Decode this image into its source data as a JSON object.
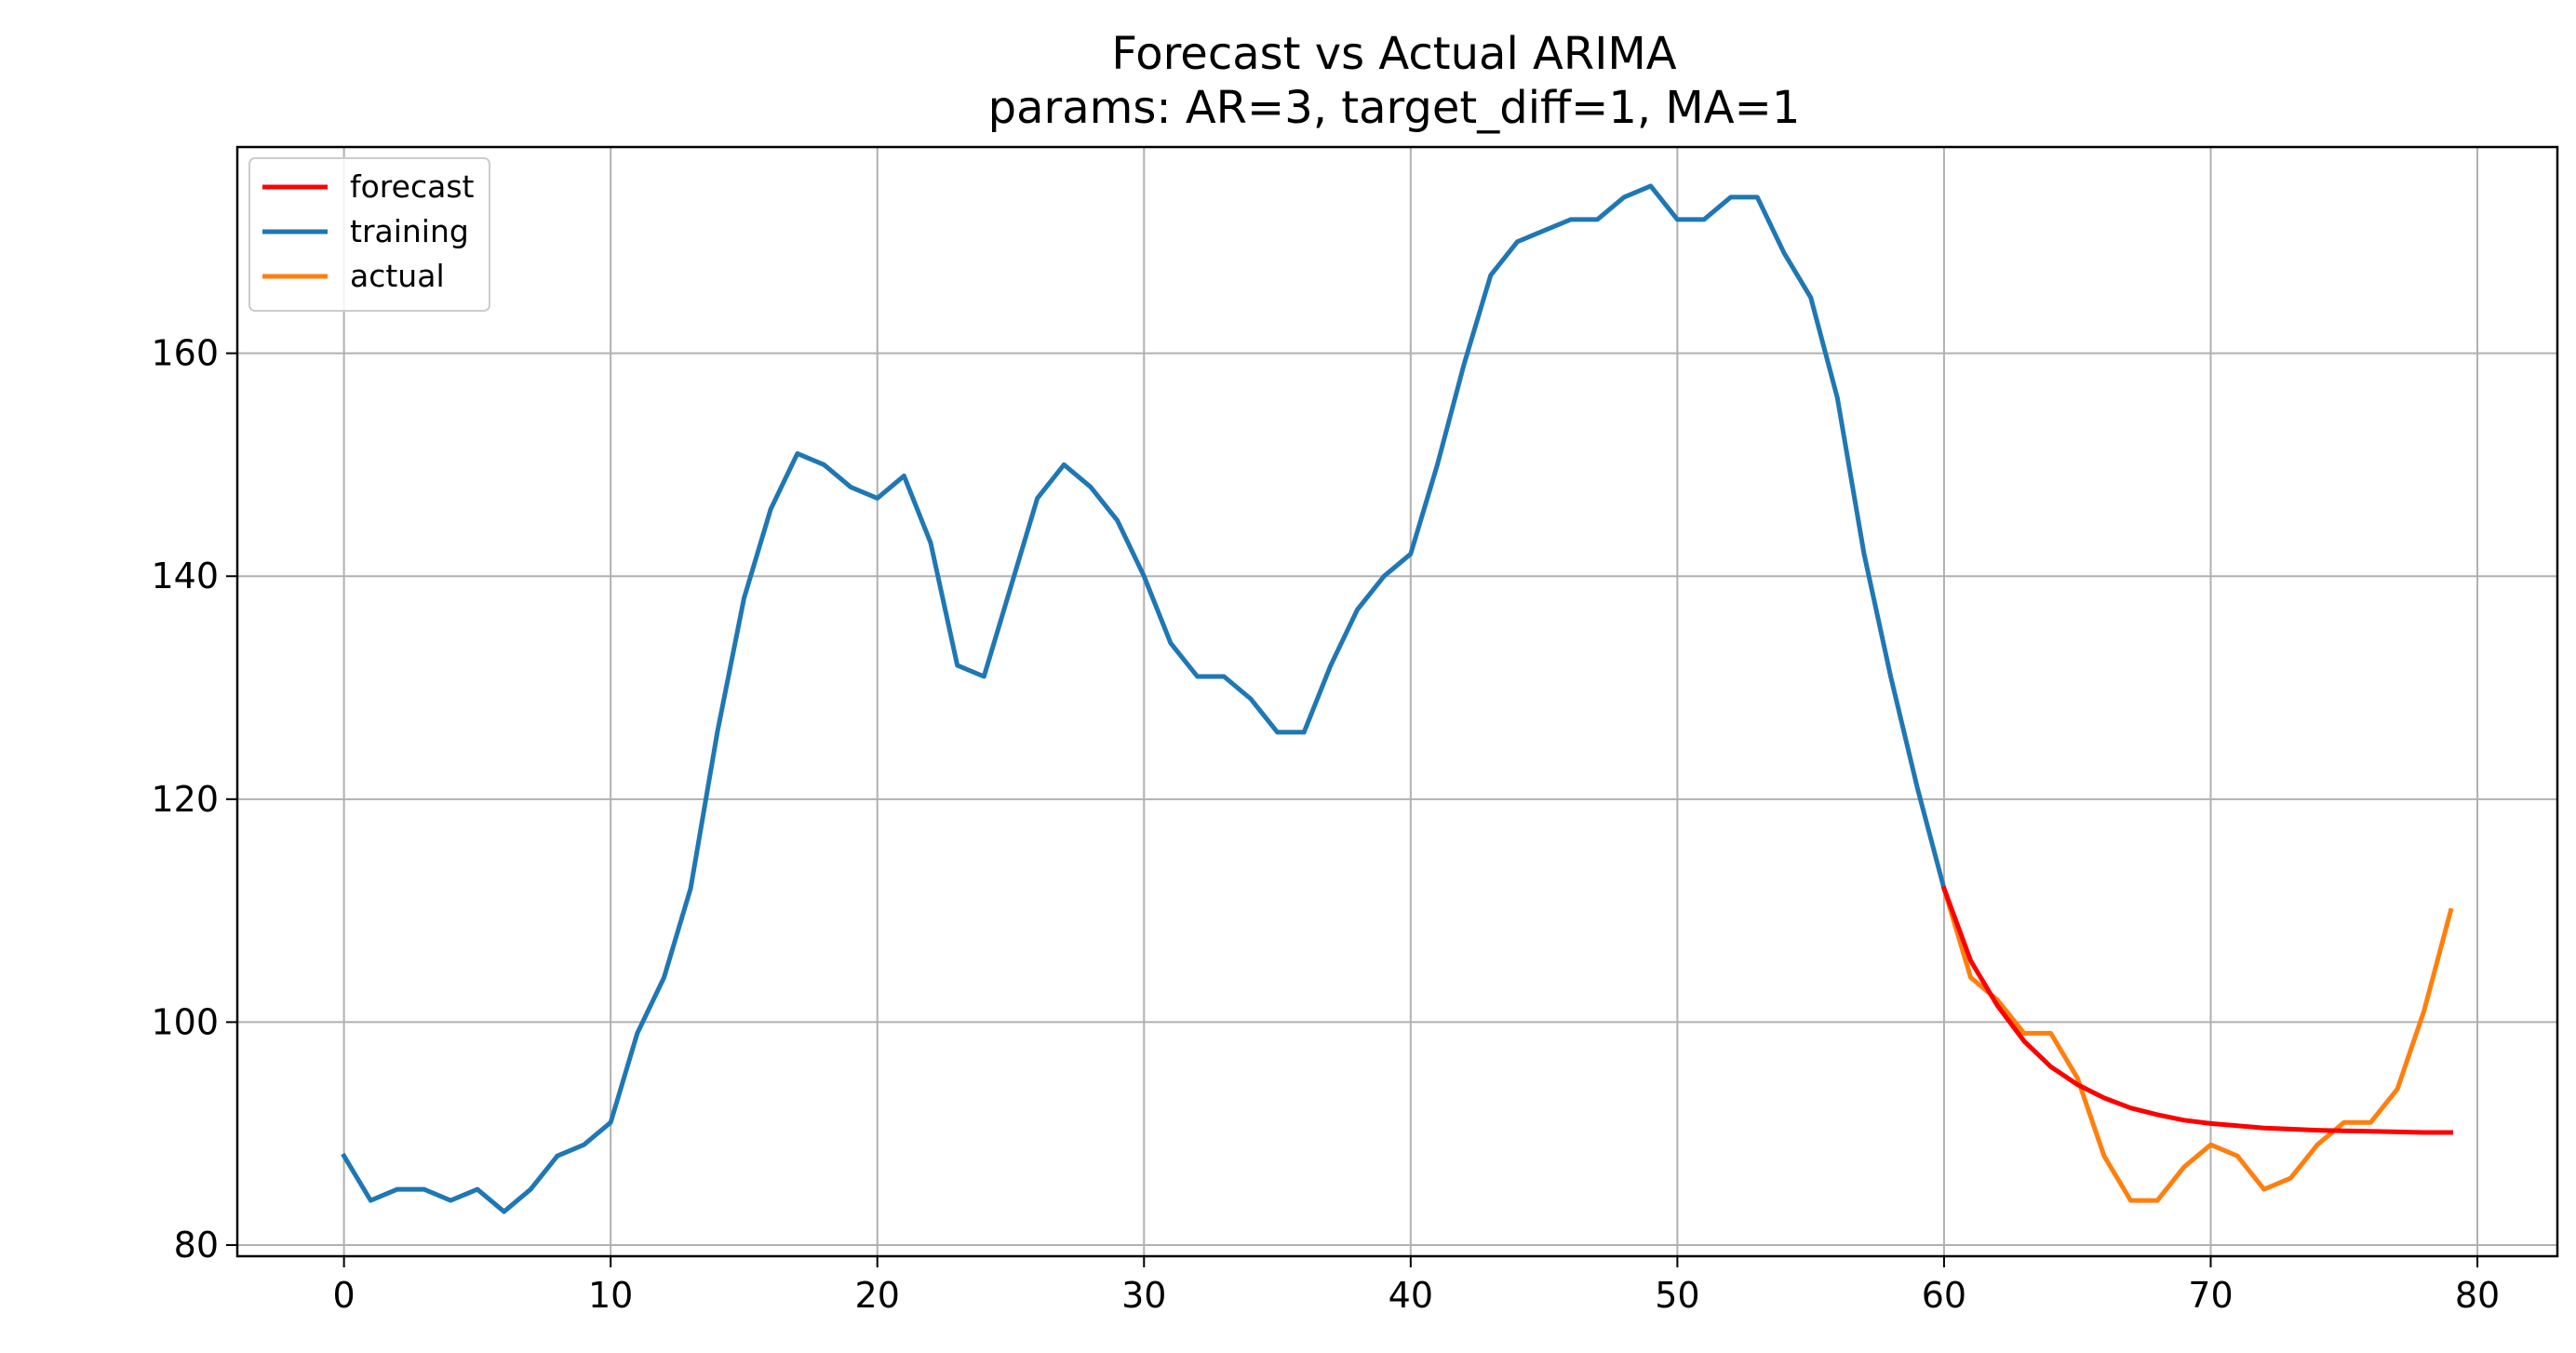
{
  "chart_data": {
    "type": "line",
    "title": "Forecast vs Actual ARIMA",
    "subtitle": "params: AR=3, target_diff=1, MA=1",
    "xlabel": "",
    "ylabel": "",
    "xlim": [
      -4,
      83
    ],
    "ylim": [
      79,
      178.5
    ],
    "x_ticks": [
      0,
      10,
      20,
      30,
      40,
      50,
      60,
      70,
      80
    ],
    "y_ticks": [
      80,
      100,
      120,
      140,
      160
    ],
    "grid": true,
    "legend_position": "upper left",
    "series": [
      {
        "name": "forecast",
        "color": "#ff0000",
        "x": [
          60,
          61,
          62,
          63,
          64,
          65,
          66,
          67,
          68,
          69,
          70,
          71,
          72,
          73,
          74,
          75,
          76,
          77,
          78,
          79
        ],
        "values": [
          112,
          105.5,
          101.5,
          98.3,
          96,
          94.4,
          93.2,
          92.3,
          91.7,
          91.2,
          90.9,
          90.7,
          90.5,
          90.4,
          90.3,
          90.25,
          90.2,
          90.15,
          90.1,
          90.1
        ]
      },
      {
        "name": "training",
        "color": "#1f77b4",
        "x": [
          0,
          1,
          2,
          3,
          4,
          5,
          6,
          7,
          8,
          9,
          10,
          11,
          12,
          13,
          14,
          15,
          16,
          17,
          18,
          19,
          20,
          21,
          22,
          23,
          24,
          25,
          26,
          27,
          28,
          29,
          30,
          31,
          32,
          33,
          34,
          35,
          36,
          37,
          38,
          39,
          40,
          41,
          42,
          43,
          44,
          45,
          46,
          47,
          48,
          49,
          50,
          51,
          52,
          53,
          54,
          55,
          56,
          57,
          58,
          59,
          60
        ],
        "values": [
          88,
          84,
          85,
          85,
          84,
          85,
          83,
          85,
          88,
          89,
          91,
          99,
          104,
          112,
          126,
          138,
          146,
          151,
          150,
          148,
          147,
          149,
          143,
          132,
          131,
          139,
          147,
          150,
          148,
          145,
          140,
          134,
          131,
          131,
          129,
          126,
          126,
          132,
          137,
          140,
          142,
          150,
          159,
          167,
          170,
          171,
          172,
          172,
          174,
          175,
          172,
          172,
          174,
          174,
          169,
          165,
          156,
          142,
          131,
          121,
          112
        ]
      },
      {
        "name": "actual",
        "color": "#ff7f0e",
        "x": [
          60,
          61,
          62,
          63,
          64,
          65,
          66,
          67,
          68,
          69,
          70,
          71,
          72,
          73,
          74,
          75,
          76,
          77,
          78,
          79
        ],
        "values": [
          112,
          104,
          102,
          99,
          99,
          95,
          88,
          84,
          84,
          87,
          89,
          88,
          85,
          86,
          89,
          91,
          91,
          94,
          101,
          110
        ]
      }
    ]
  }
}
